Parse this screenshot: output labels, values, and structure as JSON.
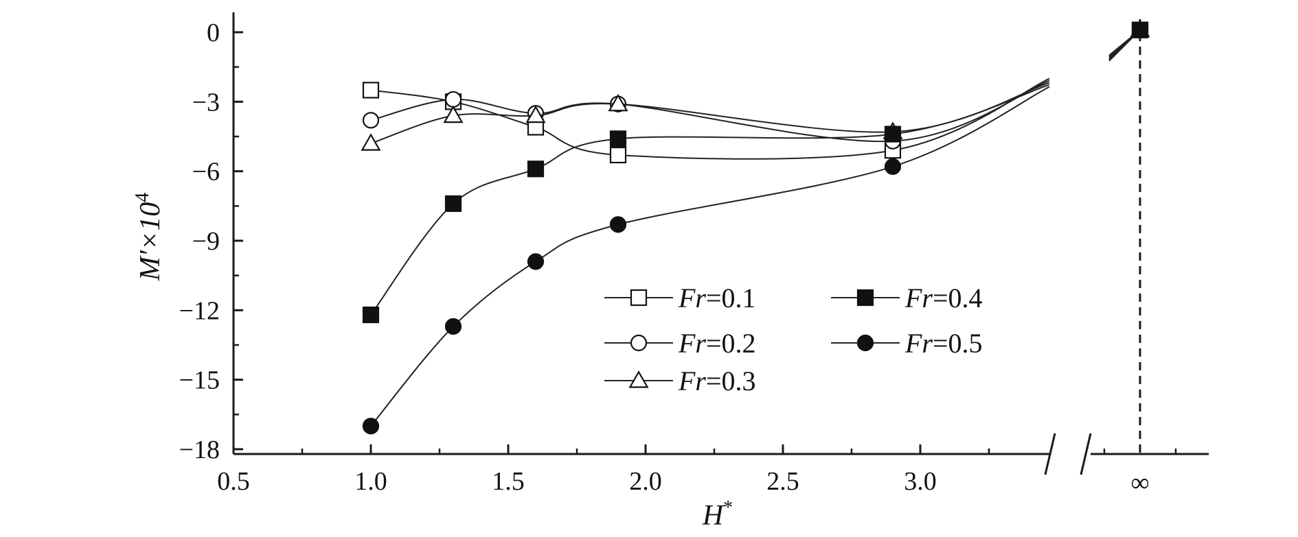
{
  "chart_data": {
    "type": "line",
    "xlabel": {
      "main": "H",
      "sup": "*"
    },
    "ylabel": {
      "main": "M′×10",
      "sup": "4"
    },
    "x_ticks": [
      "0.5",
      "1.0",
      "1.5",
      "2.0",
      "2.5",
      "3.0"
    ],
    "x_infinity_label": "∞",
    "y_ticks": [
      "0",
      "−3",
      "−6",
      "−9",
      "−12",
      "−15",
      "−18"
    ],
    "xlim": [
      0.5,
      3.4
    ],
    "ylim": [
      -18,
      0
    ],
    "broken_x_axis": true,
    "series": [
      {
        "label_italic": "Fr",
        "label_rest": "=0.1",
        "marker": "square-open",
        "x": [
          1.0,
          1.3,
          1.6,
          1.9,
          2.9
        ],
        "y": [
          -2.5,
          -3.0,
          -4.1,
          -5.3,
          -5.1
        ],
        "y_inf": 0.1
      },
      {
        "label_italic": "Fr",
        "label_rest": "=0.2",
        "marker": "circle-open",
        "x": [
          1.0,
          1.3,
          1.6,
          1.9,
          2.9
        ],
        "y": [
          -3.8,
          -2.9,
          -3.5,
          -3.1,
          -4.7
        ],
        "y_inf": 0.1
      },
      {
        "label_italic": "Fr",
        "label_rest": "=0.3",
        "marker": "triangle-open",
        "x": [
          1.0,
          1.3,
          1.6,
          1.9,
          2.9
        ],
        "y": [
          -4.8,
          -3.6,
          -3.6,
          -3.1,
          -4.3
        ],
        "y_inf": 0.1
      },
      {
        "label_italic": "Fr",
        "label_rest": "=0.4",
        "marker": "square-filled",
        "x": [
          1.0,
          1.3,
          1.6,
          1.9,
          2.9
        ],
        "y": [
          -12.2,
          -7.4,
          -5.9,
          -4.6,
          -4.4
        ],
        "y_inf": 0.1
      },
      {
        "label_italic": "Fr",
        "label_rest": "=0.5",
        "marker": "circle-filled",
        "x": [
          1.0,
          1.3,
          1.6,
          1.9,
          2.9
        ],
        "y": [
          -17.0,
          -12.7,
          -9.9,
          -8.3,
          -5.8
        ],
        "y_inf": 0.1
      }
    ],
    "legend_layout": "two-column",
    "grid": false
  }
}
